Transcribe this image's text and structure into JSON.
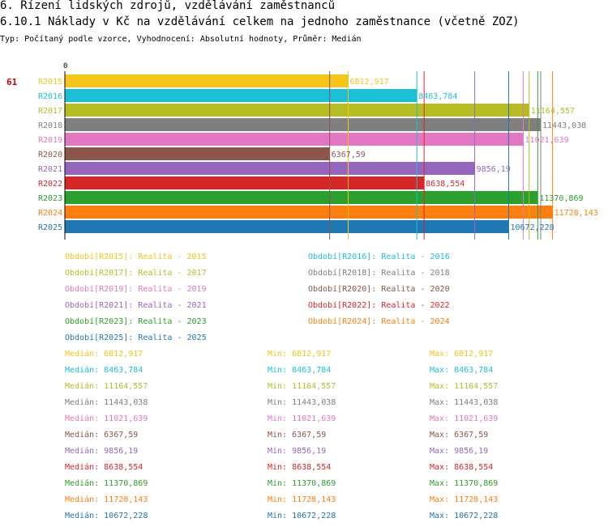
{
  "header": {
    "section": "6. Řízení lidských zdrojů, vzdělávání zaměstnanců",
    "title": "6.10.1 Náklady v Kč na vzdělávání celkem na jednoho zaměstnance (včetně ZOZ)",
    "subtitle": "Typ: Počítaný podle vzorce, Vyhodnocení: Absolutní hodnoty, Průměr: Medián"
  },
  "chart_data": {
    "type": "bar",
    "orientation": "horizontal",
    "title": "6.10.1 Náklady v Kč na vzdělávání celkem na jednoho zaměstnance (včetně ZOZ)",
    "axis_zero_label": "0",
    "indicator_label": "61",
    "xlim": [
      0,
      11900
    ],
    "categories": [
      "R2015",
      "R2016",
      "R2017",
      "R2018",
      "R2019",
      "R2020",
      "R2021",
      "R2022",
      "R2023",
      "R2024",
      "R2025"
    ],
    "values": [
      6812.917,
      8463.784,
      11164.557,
      11443.038,
      11021.639,
      6367.59,
      9856.19,
      8638.554,
      11370.869,
      11728.143,
      10672.228
    ],
    "value_labels": [
      "6812,917",
      "8463,784",
      "11164,557",
      "11443,038",
      "11021,639",
      "6367,59",
      "9856,19",
      "8638,554",
      "11370,869",
      "11728,143",
      "10672,228"
    ],
    "colors": [
      "#f5c518",
      "#1bbfd6",
      "#b5bd22",
      "#7f7f7f",
      "#e377c2",
      "#8c564b",
      "#9467bd",
      "#d62728",
      "#2ca02c",
      "#ff7f0e",
      "#1f77b4"
    ],
    "legend": [
      "Období[R2015]: Realita - 2015",
      "Období[R2016]: Realita - 2016",
      "Období[R2017]: Realita - 2017",
      "Období[R2018]: Realita - 2018",
      "Období[R2019]: Realita - 2019",
      "Období[R2020]: Realita - 2020",
      "Období[R2021]: Realita - 2021",
      "Období[R2022]: Realita - 2022",
      "Období[R2023]: Realita - 2023",
      "Období[R2024]: Realita - 2024",
      "Období[R2025]: Realita - 2025"
    ],
    "stats": [
      {
        "median": "Medián: 6812,917",
        "min": "Min: 6812,917",
        "max": "Max: 6812,917"
      },
      {
        "median": "Medián: 8463,784",
        "min": "Min: 8463,784",
        "max": "Max: 8463,784"
      },
      {
        "median": "Medián: 11164,557",
        "min": "Min: 11164,557",
        "max": "Max: 11164,557"
      },
      {
        "median": "Medián: 11443,038",
        "min": "Min: 11443,038",
        "max": "Max: 11443,038"
      },
      {
        "median": "Medián: 11021,639",
        "min": "Min: 11021,639",
        "max": "Max: 11021,639"
      },
      {
        "median": "Medián: 6367,59",
        "min": "Min: 6367,59",
        "max": "Max: 6367,59"
      },
      {
        "median": "Medián: 9856,19",
        "min": "Min: 9856,19",
        "max": "Max: 9856,19"
      },
      {
        "median": "Medián: 8638,554",
        "min": "Min: 8638,554",
        "max": "Max: 8638,554"
      },
      {
        "median": "Medián: 11370,869",
        "min": "Min: 11370,869",
        "max": "Max: 11370,869"
      },
      {
        "median": "Medián: 11728,143",
        "min": "Min: 11728,143",
        "max": "Max: 11728,143"
      },
      {
        "median": "Medián: 10672,228",
        "min": "Min: 10672,228",
        "max": "Max: 10672,228"
      }
    ]
  }
}
